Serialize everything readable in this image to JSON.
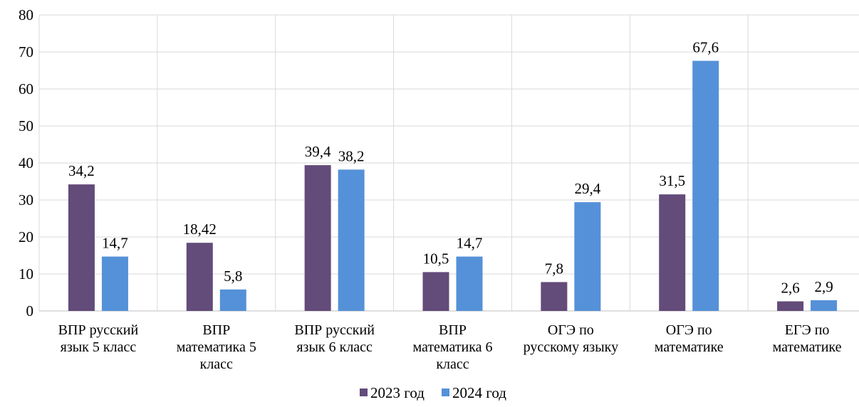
{
  "chart_data": {
    "type": "bar",
    "title": "",
    "xlabel": "",
    "ylabel": "",
    "ylim": [
      0,
      80
    ],
    "yticks": [
      0,
      10,
      20,
      30,
      40,
      50,
      60,
      70,
      80
    ],
    "grid": true,
    "legend_position": "bottom",
    "categories": [
      [
        "ВПР русский",
        "язык 5 класс"
      ],
      [
        "ВПР",
        "математика 5",
        "класс"
      ],
      [
        "ВПР русский",
        "язык 6 класс"
      ],
      [
        "ВПР",
        "математика 6",
        "класс"
      ],
      [
        "ОГЭ по",
        "русскому языку"
      ],
      [
        "ОГЭ по",
        "математике"
      ],
      [
        "ЕГЭ по",
        "математике"
      ]
    ],
    "series": [
      {
        "name": "2023 год",
        "color": "#634b7a",
        "values": [
          34.2,
          18.42,
          39.4,
          10.5,
          7.8,
          31.5,
          2.6
        ],
        "labels": [
          "34,2",
          "18,42",
          "39,4",
          "10,5",
          "7,8",
          "31,5",
          "2,6"
        ]
      },
      {
        "name": "2024 год",
        "color": "#5591d8",
        "values": [
          14.7,
          5.8,
          38.2,
          14.7,
          29.4,
          67.6,
          2.9
        ],
        "labels": [
          "14,7",
          "5,8",
          "38,2",
          "14,7",
          "29,4",
          "67,6",
          "2,9"
        ]
      }
    ]
  }
}
